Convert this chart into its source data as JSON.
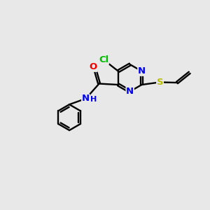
{
  "background_color": "#e8e8e8",
  "bond_color": "#000000",
  "atom_colors": {
    "Cl": "#00bb00",
    "N": "#0000ee",
    "O": "#ee0000",
    "S": "#bbbb00",
    "C": "#000000",
    "H": "#000000"
  },
  "font_size": 9.5,
  "fig_size": [
    3.0,
    3.0
  ],
  "dpi": 100,
  "xlim": [
    0,
    10
  ],
  "ylim": [
    0,
    10
  ]
}
